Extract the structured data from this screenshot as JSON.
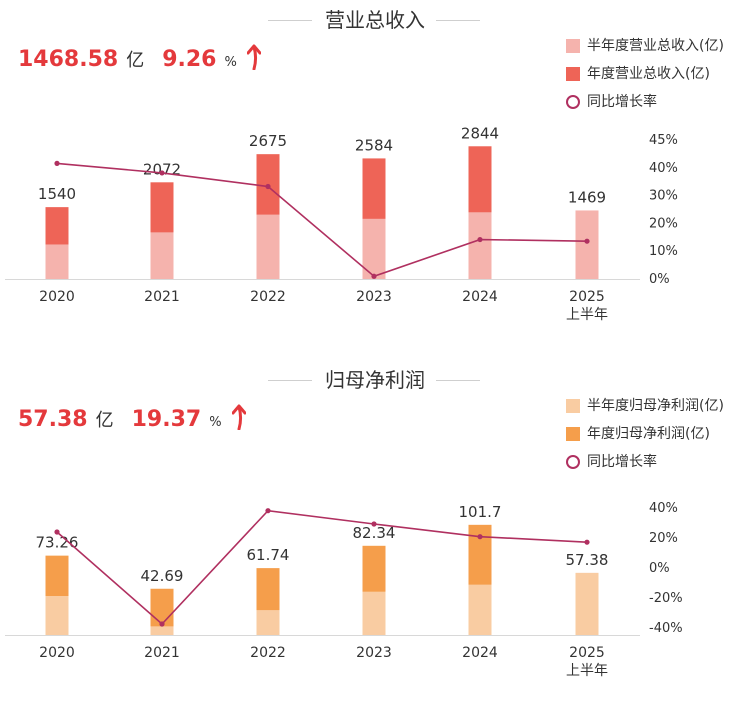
{
  "chart_data": [
    {
      "type": "bar",
      "title": "营业总收入",
      "headline": {
        "value": "1468.58",
        "value_unit": "亿",
        "growth": "9.26",
        "growth_unit": "%"
      },
      "categories": [
        "2020",
        "2021",
        "2022",
        "2023",
        "2024",
        "2025"
      ],
      "category_sublabels": [
        "",
        "",
        "",
        "",
        "",
        "上半年"
      ],
      "series": [
        {
          "name": "半年度营业总收入(亿)",
          "kind": "bar",
          "color": "#f5b3ad",
          "values": [
            740,
            1000,
            1380,
            1290,
            1430,
            1469
          ]
        },
        {
          "name": "年度营业总收入(亿)",
          "kind": "bar",
          "color": "#ee6457",
          "values": [
            1540,
            2072,
            2675,
            2584,
            2844,
            null
          ]
        },
        {
          "name": "同比增长率",
          "kind": "line",
          "color": "#b03060",
          "values": [
            37.5,
            34,
            29,
            -4,
            9.5,
            8.9
          ]
        }
      ],
      "bar_labels": [
        "1540",
        "2072",
        "2675",
        "2584",
        "2844",
        "1469"
      ],
      "y2_ticks": [
        "45%",
        "40%",
        "30%",
        "20%",
        "10%",
        "0%"
      ],
      "ylim": [
        0,
        3000
      ],
      "y2lim": [
        -5,
        45
      ],
      "grid": false,
      "legend_position": "top-right"
    },
    {
      "type": "bar",
      "title": "归母净利润",
      "headline": {
        "value": "57.38",
        "value_unit": "亿",
        "growth": "19.37",
        "growth_unit": "%"
      },
      "categories": [
        "2020",
        "2021",
        "2022",
        "2023",
        "2024",
        "2025"
      ],
      "category_sublabels": [
        "",
        "",
        "",
        "",
        "",
        "上半年"
      ],
      "series": [
        {
          "name": "半年度归母净利润(亿)",
          "kind": "bar",
          "color": "#f9cca2",
          "values": [
            36,
            8,
            23,
            40,
            46.5,
            57.38
          ]
        },
        {
          "name": "年度归母净利润(亿)",
          "kind": "bar",
          "color": "#f59e4b",
          "values": [
            73.26,
            42.69,
            61.74,
            82.34,
            101.7,
            null
          ]
        },
        {
          "name": "同比增长率",
          "kind": "line",
          "color": "#b03060",
          "values": [
            27,
            -42,
            43,
            33,
            23.5,
            19.37
          ]
        }
      ],
      "bar_labels": [
        "73.26",
        "42.69",
        "61.74",
        "82.34",
        "101.7",
        "57.38"
      ],
      "y2_ticks": [
        "40%",
        "20%",
        "0%",
        "-20%",
        "-40%"
      ],
      "ylim": [
        0,
        120
      ],
      "y2lim": [
        -45,
        45
      ],
      "grid": false,
      "legend_position": "top-right"
    }
  ]
}
